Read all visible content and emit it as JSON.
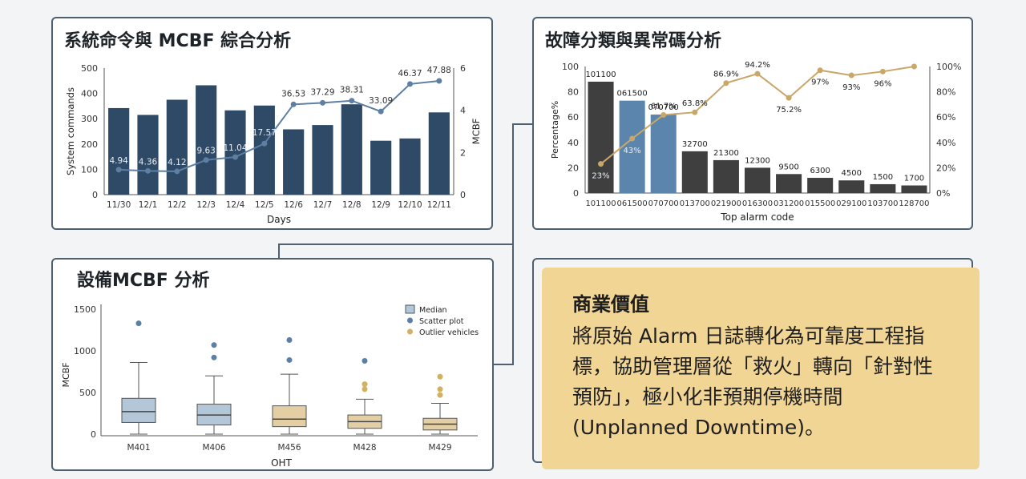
{
  "panels": {
    "mcbf_command": {
      "title": "系統命令與 MCBF 綜合分析"
    },
    "alarm_pareto": {
      "title": "故障分類與異常碼分析"
    },
    "equipment_mcbf": {
      "title": "設備MCBF 分析"
    }
  },
  "business_value": {
    "heading": "商業價值",
    "body": "將原始 Alarm 日誌轉化為可靠度工程指標，協助管理層從「救火」轉向「針對性預防」，極小化非預期停機時間 (Unplanned Downtime)。"
  },
  "colors": {
    "navy_bar": "#2f4a66",
    "line_blue": "#5c7fa3",
    "dark_bar": "#3f3f3f",
    "blue_bar": "#5b85ad",
    "gold_line": "#c9a769",
    "box_blue": "#b3c7d8",
    "box_tan": "#e3cfa3",
    "dot_blue": "#5b7fa6",
    "dot_gold": "#d2b160"
  },
  "chart_data": [
    {
      "id": "mcbf_command",
      "type": "bar",
      "categories": [
        "11/30",
        "12/1",
        "12/2",
        "12/3",
        "12/4",
        "12/5",
        "12/6",
        "12/7",
        "12/8",
        "12/9",
        "12/10",
        "12/11"
      ],
      "series": [
        {
          "values": [
            342,
            315,
            375,
            432,
            333,
            352,
            258,
            275,
            357,
            213,
            222,
            325
          ]
        },
        {
          "values": [
            4.94,
            4.36,
            4.12,
            9.63,
            11.04,
            17.57,
            36.53,
            37.29,
            38.31,
            33.09,
            46.37,
            47.88
          ]
        }
      ],
      "point_labels": [
        "4.94",
        "4.36",
        "4.12",
        "9.63",
        "11.04",
        "17.57",
        "36.53",
        "37.29",
        "38.31",
        "33.09",
        "46.37",
        "47.88"
      ],
      "xlabel": "Days",
      "ylabel": "System commands",
      "y2label": "MCBF",
      "yticks": [
        "0",
        "100",
        "200",
        "300",
        "400",
        "500"
      ],
      "y2ticks": [
        "0",
        "2",
        "4",
        "6"
      ],
      "ylim": [
        0,
        500
      ],
      "y2lim": [
        0,
        6
      ]
    },
    {
      "id": "alarm_pareto",
      "type": "bar",
      "categories": [
        "101100",
        "061500",
        "070700",
        "013700",
        "021900",
        "016300",
        "031200",
        "015500",
        "029100",
        "103700",
        "128700"
      ],
      "bar_labels": [
        "101100",
        "061500",
        "070700",
        "32700",
        "21300",
        "12300",
        "9500",
        "6300",
        "4500",
        "1500",
        "1700"
      ],
      "values": [
        88,
        73,
        62,
        33,
        26,
        20,
        15,
        12,
        10,
        7,
        6
      ],
      "highlight": [
        false,
        true,
        true,
        false,
        false,
        false,
        false,
        false,
        false,
        false,
        false
      ],
      "cumulative": [
        23,
        43,
        61.7,
        63.8,
        86.9,
        94.2,
        75.2,
        97,
        93,
        96,
        100
      ],
      "cumulative_labels": [
        "23%",
        "43%",
        "61.7%",
        "63.8%",
        "86.9%",
        "94.2%",
        "75.2%",
        "97%",
        "93%",
        "96%",
        ""
      ],
      "xlabel": "Top alarm code",
      "ylabel": "Percentage%",
      "yticks": [
        "0",
        "20",
        "40",
        "60",
        "80",
        "100"
      ],
      "y2ticks": [
        "0%",
        "20%",
        "40%",
        "60%",
        "80%",
        "100%"
      ],
      "ylim": [
        0,
        100
      ],
      "y2lim": [
        0,
        100
      ]
    },
    {
      "id": "equipment_mcbf",
      "type": "box",
      "categories": [
        "M401",
        "M406",
        "M456",
        "M428",
        "M429"
      ],
      "boxes": [
        {
          "min": 0,
          "q1": 140,
          "median": 270,
          "q3": 430,
          "max": 860,
          "fill": "blue"
        },
        {
          "min": 0,
          "q1": 110,
          "median": 230,
          "q3": 360,
          "max": 700,
          "fill": "blue"
        },
        {
          "min": 0,
          "q1": 90,
          "median": 180,
          "q3": 340,
          "max": 720,
          "fill": "tan"
        },
        {
          "min": 0,
          "q1": 70,
          "median": 150,
          "q3": 230,
          "max": 420,
          "fill": "tan"
        },
        {
          "min": 0,
          "q1": 50,
          "median": 120,
          "q3": 190,
          "max": 370,
          "fill": "tan"
        }
      ],
      "outliers": [
        {
          "cat": 0,
          "value": 1330,
          "kind": "scatter"
        },
        {
          "cat": 1,
          "value": 1070,
          "kind": "scatter"
        },
        {
          "cat": 1,
          "value": 920,
          "kind": "scatter"
        },
        {
          "cat": 2,
          "value": 1130,
          "kind": "scatter"
        },
        {
          "cat": 2,
          "value": 890,
          "kind": "scatter"
        },
        {
          "cat": 3,
          "value": 880,
          "kind": "scatter"
        },
        {
          "cat": 3,
          "value": 600,
          "kind": "outlier"
        },
        {
          "cat": 3,
          "value": 540,
          "kind": "outlier"
        },
        {
          "cat": 4,
          "value": 690,
          "kind": "outlier"
        },
        {
          "cat": 4,
          "value": 540,
          "kind": "outlier"
        },
        {
          "cat": 4,
          "value": 470,
          "kind": "outlier"
        }
      ],
      "legend": [
        "Median",
        "Scatter plot",
        "Outlier vehicles"
      ],
      "legend_position": "top-right",
      "xlabel": "OHT",
      "ylabel": "MCBF",
      "yticks": [
        "0",
        "500",
        "1000",
        "1500"
      ],
      "ylim": [
        0,
        1500
      ]
    }
  ]
}
